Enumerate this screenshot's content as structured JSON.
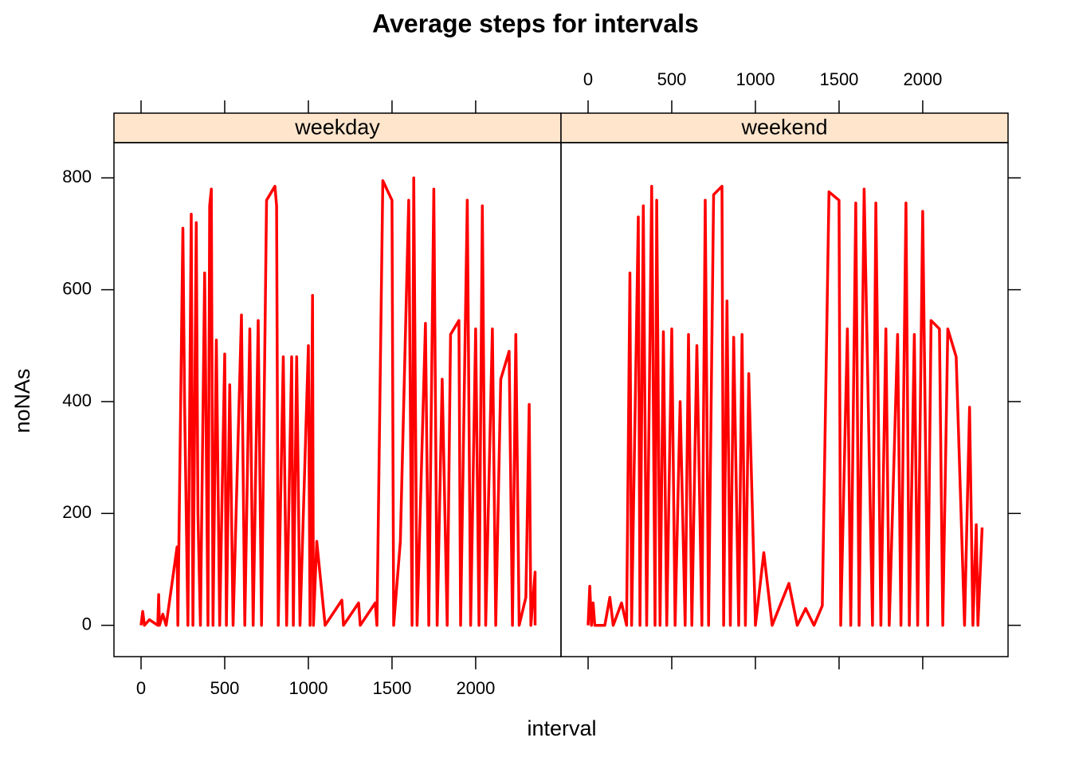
{
  "chart_data": {
    "type": "line",
    "title": "Average steps for intervals",
    "xlabel": "interval",
    "ylabel": "noNAs",
    "xlim": [
      -162,
      2510
    ],
    "ylim": [
      -56,
      863
    ],
    "xticks": [
      0,
      500,
      1000,
      1500,
      2000
    ],
    "yticks": [
      0,
      200,
      400,
      600,
      800
    ],
    "strip_color": "#ffe5cc",
    "series": [
      {
        "name": "weekday",
        "color": "#ff0000",
        "x": [
          0,
          10,
          20,
          50,
          100,
          105,
          110,
          130,
          150,
          215,
          220,
          250,
          260,
          280,
          300,
          310,
          330,
          340,
          355,
          380,
          400,
          410,
          420,
          430,
          450,
          470,
          500,
          510,
          530,
          550,
          600,
          620,
          650,
          670,
          700,
          720,
          750,
          800,
          810,
          820,
          850,
          870,
          900,
          910,
          930,
          950,
          1000,
          1010,
          1025,
          1030,
          1050,
          1100,
          1200,
          1210,
          1300,
          1310,
          1400,
          1410,
          1445,
          1500,
          1510,
          1550,
          1600,
          1620,
          1630,
          1650,
          1700,
          1720,
          1750,
          1770,
          1800,
          1830,
          1850,
          1900,
          1910,
          1950,
          1970,
          2000,
          2020,
          2040,
          2060,
          2100,
          2120,
          2150,
          2200,
          2220,
          2240,
          2260,
          2300,
          2320,
          2330,
          2355,
          2355
        ],
        "values": [
          0,
          25,
          0,
          10,
          0,
          55,
          0,
          20,
          0,
          140,
          0,
          710,
          400,
          0,
          735,
          0,
          720,
          200,
          0,
          630,
          0,
          750,
          780,
          0,
          510,
          0,
          485,
          0,
          430,
          0,
          555,
          0,
          530,
          0,
          545,
          0,
          760,
          785,
          750,
          0,
          480,
          0,
          480,
          0,
          480,
          0,
          500,
          0,
          590,
          0,
          150,
          0,
          45,
          0,
          40,
          0,
          40,
          0,
          795,
          760,
          0,
          150,
          760,
          0,
          800,
          0,
          540,
          0,
          780,
          0,
          440,
          0,
          520,
          545,
          0,
          760,
          0,
          530,
          0,
          750,
          0,
          530,
          0,
          440,
          490,
          0,
          520,
          0,
          50,
          395,
          0,
          95,
          0
        ]
      },
      {
        "name": "weekend",
        "color": "#ff0000",
        "x": [
          0,
          10,
          20,
          30,
          40,
          100,
          130,
          150,
          200,
          230,
          250,
          260,
          300,
          310,
          330,
          350,
          380,
          400,
          410,
          430,
          450,
          470,
          500,
          520,
          550,
          580,
          600,
          620,
          650,
          680,
          700,
          720,
          750,
          800,
          810,
          830,
          850,
          870,
          900,
          920,
          940,
          960,
          1000,
          1050,
          1100,
          1200,
          1250,
          1300,
          1350,
          1400,
          1440,
          1500,
          1510,
          1550,
          1570,
          1600,
          1620,
          1650,
          1700,
          1720,
          1750,
          1780,
          1800,
          1850,
          1870,
          1900,
          1920,
          1950,
          1970,
          2000,
          2030,
          2050,
          2100,
          2120,
          2150,
          2200,
          2250,
          2280,
          2300,
          2320,
          2330,
          2355
        ],
        "values": [
          0,
          70,
          0,
          40,
          0,
          0,
          50,
          0,
          40,
          0,
          630,
          0,
          730,
          0,
          750,
          0,
          785,
          0,
          760,
          0,
          525,
          0,
          530,
          0,
          400,
          0,
          520,
          0,
          500,
          0,
          760,
          0,
          770,
          785,
          0,
          580,
          0,
          515,
          0,
          520,
          0,
          450,
          0,
          130,
          0,
          75,
          0,
          30,
          0,
          35,
          775,
          760,
          0,
          530,
          0,
          755,
          0,
          780,
          0,
          755,
          0,
          530,
          0,
          520,
          0,
          755,
          0,
          520,
          0,
          740,
          0,
          545,
          530,
          0,
          530,
          480,
          0,
          390,
          0,
          180,
          0,
          175
        ]
      }
    ]
  }
}
